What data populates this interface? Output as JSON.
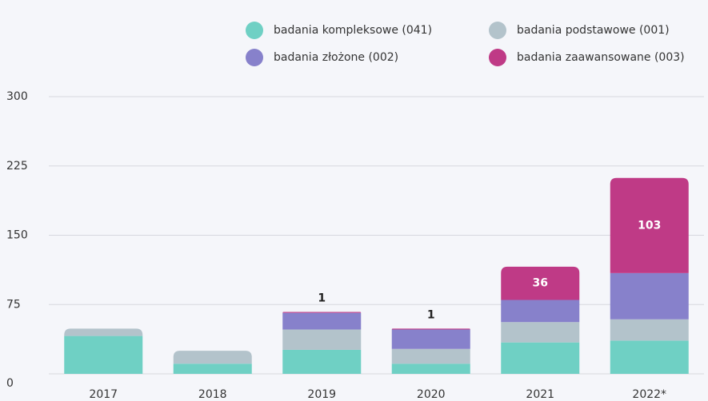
{
  "chart_data": {
    "type": "stacked_bar",
    "categories": [
      "2017",
      "2018",
      "2019",
      "2020",
      "2021",
      "2022*"
    ],
    "series": [
      {
        "name": "badania kompleksowe (041)",
        "color": "#6fd0c4",
        "values": [
          41,
          11,
          26,
          11,
          34,
          36
        ]
      },
      {
        "name": "badania podstawowe (001)",
        "color": "#b3c3cb",
        "values": [
          8,
          14,
          22,
          16,
          22,
          23
        ]
      },
      {
        "name": "badania złożone (002)",
        "color": "#8781cb",
        "values": [
          null,
          null,
          18,
          21,
          24,
          50
        ]
      },
      {
        "name": "badania zaawansowane (003)",
        "color": "#bf3a86",
        "values": [
          null,
          null,
          1,
          1,
          36,
          103
        ]
      }
    ],
    "ylim": [
      0,
      300
    ],
    "yticks": [
      0,
      75,
      150,
      225,
      300
    ],
    "grid": true
  }
}
